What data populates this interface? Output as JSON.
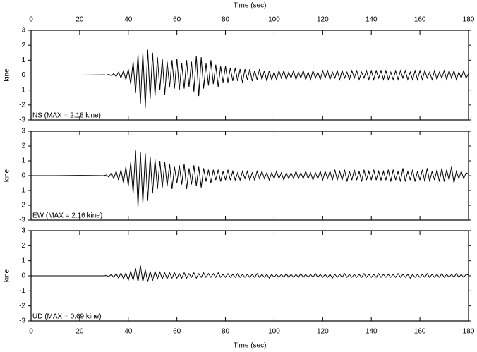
{
  "chart_data": [
    {
      "type": "line",
      "label": "NS (MAX = 2.18 kine)",
      "ylabel": "kine",
      "xlabel": "Time (sec)",
      "color": "#000000",
      "xlim": [
        0,
        180
      ],
      "xticks": [
        0,
        20,
        40,
        60,
        80,
        100,
        120,
        140,
        160,
        180
      ],
      "ylim": [
        -3,
        3
      ],
      "yticks": [
        -3,
        -2,
        -1,
        0,
        1,
        2,
        3
      ],
      "x": [
        0,
        10,
        20,
        30,
        31,
        32,
        33,
        34,
        35,
        36,
        37,
        38,
        39,
        40,
        41,
        42,
        43,
        44,
        45,
        46,
        47,
        48,
        49,
        50,
        51,
        52,
        53,
        54,
        55,
        56,
        57,
        58,
        59,
        60,
        61,
        62,
        63,
        64,
        65,
        66,
        67,
        68,
        69,
        70,
        71,
        72,
        73,
        74,
        75,
        76,
        77,
        78,
        79,
        80,
        81,
        82,
        83,
        84,
        85,
        86,
        87,
        88,
        89,
        90,
        91,
        92,
        93,
        94,
        95,
        96,
        97,
        98,
        99,
        100,
        101,
        102,
        103,
        104,
        105,
        106,
        107,
        108,
        109,
        110,
        111,
        112,
        113,
        114,
        115,
        116,
        117,
        118,
        119,
        120,
        121,
        122,
        123,
        124,
        125,
        126,
        127,
        128,
        129,
        130,
        131,
        132,
        133,
        134,
        135,
        136,
        137,
        138,
        139,
        140,
        141,
        142,
        143,
        144,
        145,
        146,
        147,
        148,
        149,
        150,
        151,
        152,
        153,
        154,
        155,
        156,
        157,
        158,
        159,
        160,
        161,
        162,
        163,
        164,
        165,
        166,
        167,
        168,
        169,
        170,
        171,
        172,
        173,
        174,
        175,
        176,
        177,
        178,
        179,
        180
      ],
      "values": [
        0,
        0,
        0,
        0.02,
        0,
        0.05,
        -0.05,
        0.1,
        -0.1,
        0.2,
        -0.2,
        0.3,
        -0.3,
        0.4,
        -0.6,
        0.9,
        -1.2,
        1.4,
        -1.9,
        1.5,
        -2.18,
        1.7,
        -1.6,
        1.5,
        -1.4,
        1.2,
        -1.0,
        1.1,
        -1.3,
        0.9,
        -0.8,
        1.0,
        -0.9,
        1.1,
        -1.0,
        0.8,
        -0.9,
        1.0,
        -0.8,
        0.9,
        -1.1,
        1.3,
        -1.4,
        1.2,
        -0.9,
        0.8,
        -0.7,
        1.0,
        -0.6,
        0.7,
        -0.8,
        0.6,
        -0.5,
        0.6,
        -0.5,
        0.5,
        -0.4,
        0.5,
        -0.4,
        0.4,
        -0.5,
        0.4,
        -0.3,
        0.4,
        -0.4,
        0.3,
        -0.3,
        0.4,
        -0.3,
        0.3,
        -0.4,
        0.3,
        -0.3,
        0.2,
        -0.3,
        0.3,
        -0.2,
        0.3,
        -0.3,
        0.2,
        -0.2,
        0.3,
        -0.3,
        0.2,
        -0.2,
        0.3,
        -0.3,
        0.2,
        -0.3,
        0.3,
        -0.2,
        0.2,
        -0.3,
        0.3,
        -0.2,
        0.3,
        -0.3,
        0.2,
        -0.2,
        0.3,
        -0.3,
        0.3,
        -0.2,
        0.2,
        -0.3,
        0.3,
        -0.2,
        0.3,
        -0.3,
        0.2,
        -0.2,
        0.3,
        -0.3,
        0.3,
        -0.3,
        0.3,
        -0.2,
        0.3,
        -0.3,
        0.3,
        -0.3,
        0.2,
        -0.3,
        0.3,
        -0.3,
        0.3,
        -0.2,
        0.3,
        -0.3,
        0.2,
        -0.3,
        0.3,
        -0.3,
        0.3,
        -0.3,
        0.3,
        -0.2,
        0.2,
        -0.3,
        0.3,
        -0.3,
        0.2,
        -0.2,
        0.3,
        -0.3,
        0.3,
        -0.2,
        0.3,
        -0.3,
        0.2,
        -0.2,
        0.3,
        -0.2,
        0.1
      ]
    },
    {
      "type": "line",
      "label": "EW (MAX = 2.16 kine)",
      "ylabel": "kine",
      "color": "#000000",
      "xlim": [
        0,
        180
      ],
      "xticks": [
        0,
        20,
        40,
        60,
        80,
        100,
        120,
        140,
        160,
        180
      ],
      "ylim": [
        -3,
        3
      ],
      "yticks": [
        -3,
        -2,
        -1,
        0,
        1,
        2,
        3
      ],
      "x": [
        0,
        10,
        20,
        30,
        31,
        32,
        33,
        34,
        35,
        36,
        37,
        38,
        39,
        40,
        41,
        42,
        43,
        44,
        45,
        46,
        47,
        48,
        49,
        50,
        51,
        52,
        53,
        54,
        55,
        56,
        57,
        58,
        59,
        60,
        61,
        62,
        63,
        64,
        65,
        66,
        67,
        68,
        69,
        70,
        71,
        72,
        73,
        74,
        75,
        76,
        77,
        78,
        79,
        80,
        81,
        82,
        83,
        84,
        85,
        86,
        87,
        88,
        89,
        90,
        91,
        92,
        93,
        94,
        95,
        96,
        97,
        98,
        99,
        100,
        101,
        102,
        103,
        104,
        105,
        106,
        107,
        108,
        109,
        110,
        111,
        112,
        113,
        114,
        115,
        116,
        117,
        118,
        119,
        120,
        121,
        122,
        123,
        124,
        125,
        126,
        127,
        128,
        129,
        130,
        131,
        132,
        133,
        134,
        135,
        136,
        137,
        138,
        139,
        140,
        141,
        142,
        143,
        144,
        145,
        146,
        147,
        148,
        149,
        150,
        151,
        152,
        153,
        154,
        155,
        156,
        157,
        158,
        159,
        160,
        161,
        162,
        163,
        164,
        165,
        166,
        167,
        168,
        169,
        170,
        171,
        172,
        173,
        174,
        175,
        176,
        177,
        178,
        179,
        180
      ],
      "values": [
        0,
        0,
        0.02,
        0,
        0.05,
        -0.1,
        0.2,
        -0.2,
        0.3,
        -0.3,
        0.4,
        -0.5,
        0.6,
        -0.7,
        0.9,
        -1.2,
        1.7,
        -2.16,
        1.6,
        -1.9,
        1.5,
        -1.7,
        1.3,
        -1.2,
        1.1,
        -0.9,
        1.0,
        -0.8,
        0.9,
        -0.7,
        0.8,
        -0.9,
        0.6,
        -0.5,
        0.7,
        -0.6,
        0.8,
        -0.9,
        0.5,
        -0.6,
        0.7,
        -0.7,
        0.6,
        -0.8,
        0.5,
        -0.4,
        0.4,
        -0.5,
        0.4,
        -0.3,
        0.4,
        -0.4,
        0.3,
        -0.3,
        0.4,
        -0.3,
        0.3,
        -0.3,
        0.2,
        -0.3,
        0.3,
        -0.2,
        0.3,
        -0.3,
        0.2,
        -0.3,
        0.3,
        -0.2,
        0.3,
        -0.2,
        0.2,
        -0.3,
        0.2,
        -0.2,
        0.3,
        -0.2,
        0.2,
        -0.3,
        0.2,
        -0.2,
        0.2,
        -0.2,
        0.3,
        -0.2,
        0.2,
        -0.2,
        0.3,
        -0.2,
        0.2,
        -0.3,
        0.2,
        -0.2,
        0.3,
        -0.3,
        0.3,
        -0.2,
        0.3,
        -0.3,
        0.4,
        -0.3,
        0.3,
        -0.3,
        0.4,
        -0.4,
        0.3,
        -0.3,
        0.4,
        -0.3,
        0.3,
        -0.4,
        0.4,
        -0.3,
        0.3,
        -0.3,
        0.4,
        -0.3,
        0.3,
        -0.3,
        0.3,
        -0.3,
        0.4,
        -0.4,
        0.4,
        -0.3,
        0.3,
        -0.4,
        0.5,
        -0.4,
        0.3,
        -0.3,
        0.4,
        -0.4,
        0.3,
        -0.3,
        0.4,
        -0.4,
        0.5,
        -0.4,
        0.3,
        -0.3,
        0.4,
        -0.4,
        0.5,
        -0.4,
        0.4,
        -0.3,
        0.6,
        -0.5,
        0.3,
        -0.2,
        0.3,
        -0.2,
        0.2,
        0.1
      ]
    },
    {
      "type": "line",
      "label": "UD (MAX = 0.69 kine)",
      "ylabel": "kine",
      "xlabel": "Time (sec)",
      "color": "#000000",
      "xlim": [
        0,
        180
      ],
      "xticks": [
        0,
        20,
        40,
        60,
        80,
        100,
        120,
        140,
        160,
        180
      ],
      "ylim": [
        -3,
        3
      ],
      "yticks": [
        -3,
        -2,
        -1,
        0,
        1,
        2,
        3
      ],
      "x": [
        0,
        10,
        20,
        30,
        31,
        32,
        33,
        34,
        35,
        36,
        37,
        38,
        39,
        40,
        41,
        42,
        43,
        44,
        45,
        46,
        47,
        48,
        49,
        50,
        51,
        52,
        53,
        54,
        55,
        56,
        57,
        58,
        59,
        60,
        61,
        62,
        63,
        64,
        65,
        66,
        67,
        68,
        69,
        70,
        71,
        72,
        73,
        74,
        75,
        76,
        77,
        78,
        79,
        80,
        81,
        82,
        83,
        84,
        85,
        86,
        87,
        88,
        89,
        90,
        91,
        92,
        93,
        94,
        95,
        96,
        97,
        98,
        99,
        100,
        101,
        102,
        103,
        104,
        105,
        106,
        107,
        108,
        109,
        110,
        111,
        112,
        113,
        114,
        115,
        116,
        117,
        118,
        119,
        120,
        121,
        122,
        123,
        124,
        125,
        126,
        127,
        128,
        129,
        130,
        131,
        132,
        133,
        134,
        135,
        136,
        137,
        138,
        139,
        140,
        141,
        142,
        143,
        144,
        145,
        146,
        147,
        148,
        149,
        150,
        151,
        152,
        153,
        154,
        155,
        156,
        157,
        158,
        159,
        160,
        161,
        162,
        163,
        164,
        165,
        166,
        167,
        168,
        169,
        170,
        171,
        172,
        173,
        174,
        175,
        176,
        177,
        178,
        179,
        180
      ],
      "values": [
        0,
        0,
        0,
        0,
        0.02,
        -0.05,
        0.1,
        -0.1,
        0.15,
        -0.15,
        0.2,
        -0.2,
        0.2,
        -0.3,
        0.3,
        -0.3,
        0.5,
        -0.4,
        0.69,
        -0.4,
        0.4,
        -0.4,
        0.3,
        -0.3,
        0.3,
        -0.2,
        0.25,
        -0.2,
        0.2,
        -0.2,
        0.2,
        -0.15,
        0.2,
        -0.15,
        0.15,
        -0.15,
        0.2,
        -0.15,
        0.15,
        -0.1,
        0.2,
        -0.15,
        0.15,
        -0.1,
        0.2,
        -0.1,
        0.15,
        -0.1,
        0.15,
        -0.1,
        0.2,
        -0.1,
        0.1,
        -0.1,
        0.15,
        -0.1,
        0.1,
        -0.1,
        0.15,
        -0.1,
        0.1,
        -0.1,
        0.1,
        -0.1,
        0.1,
        -0.1,
        0.15,
        -0.1,
        0.1,
        -0.1,
        0.1,
        -0.15,
        0.1,
        -0.1,
        0.1,
        -0.1,
        0.1,
        -0.1,
        0.15,
        -0.1,
        0.1,
        -0.1,
        0.1,
        -0.1,
        0.15,
        -0.1,
        0.1,
        -0.1,
        0.1,
        -0.1,
        0.15,
        -0.1,
        0.1,
        -0.1,
        0.1,
        -0.1,
        0.1,
        -0.15,
        0.1,
        -0.1,
        0.1,
        -0.1,
        0.15,
        -0.1,
        0.1,
        -0.1,
        0.1,
        -0.1,
        0.1,
        -0.1,
        0.15,
        -0.1,
        0.1,
        -0.1,
        0.1,
        -0.1,
        0.15,
        -0.1,
        0.1,
        -0.1,
        0.1,
        -0.1,
        0.1,
        -0.1,
        0.15,
        -0.1,
        0.1,
        -0.1,
        0.1,
        -0.15,
        0.1,
        -0.1,
        0.1,
        -0.1,
        0.1,
        -0.1,
        0.15,
        -0.1,
        0.1,
        -0.1,
        0.1,
        -0.1,
        0.15,
        -0.1,
        0.1,
        -0.1,
        0.1,
        -0.1,
        0.15,
        -0.1,
        0.1,
        -0.1,
        0.1,
        0.05
      ]
    }
  ]
}
